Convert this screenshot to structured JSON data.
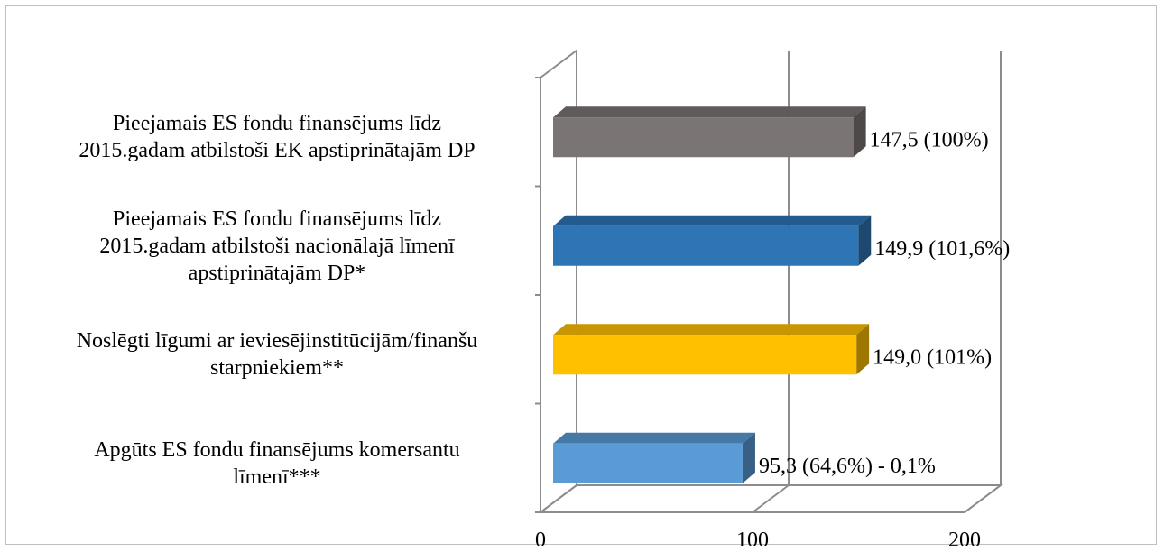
{
  "chart_data": {
    "type": "bar",
    "orientation": "horizontal",
    "style": "3d",
    "title": "",
    "xlabel": "",
    "ylabel": "",
    "xlim": [
      0,
      200
    ],
    "x_ticks": [
      "0",
      "100",
      "200"
    ],
    "grid": true,
    "legend": "none",
    "categories": [
      [
        "Pieejamais ES fondu finansējums līdz",
        "2015.gadam atbilstoši EK apstiprinātajām DP"
      ],
      [
        "Pieejamais ES fondu finansējums līdz",
        "2015.gadam atbilstoši nacionālajā līmenī",
        "apstiprinātajām DP*"
      ],
      [
        "Noslēgti līgumi ar ieviesējinstitūcijām/finanšu",
        "starpniekiem**"
      ],
      [
        "Apgūts ES fondu finansējums komersantu",
        "līmenī***"
      ]
    ],
    "values": [
      147.5,
      149.9,
      149.0,
      95.3
    ],
    "data_labels": [
      "147,5 (100%)",
      "149,9 (101,6%)",
      "149,0 (101%)",
      "95,3 (64,6%) - 0,1%"
    ],
    "colors": [
      "#7a7574",
      "#2e75b6",
      "#ffc000",
      "#5b9bd5"
    ]
  }
}
